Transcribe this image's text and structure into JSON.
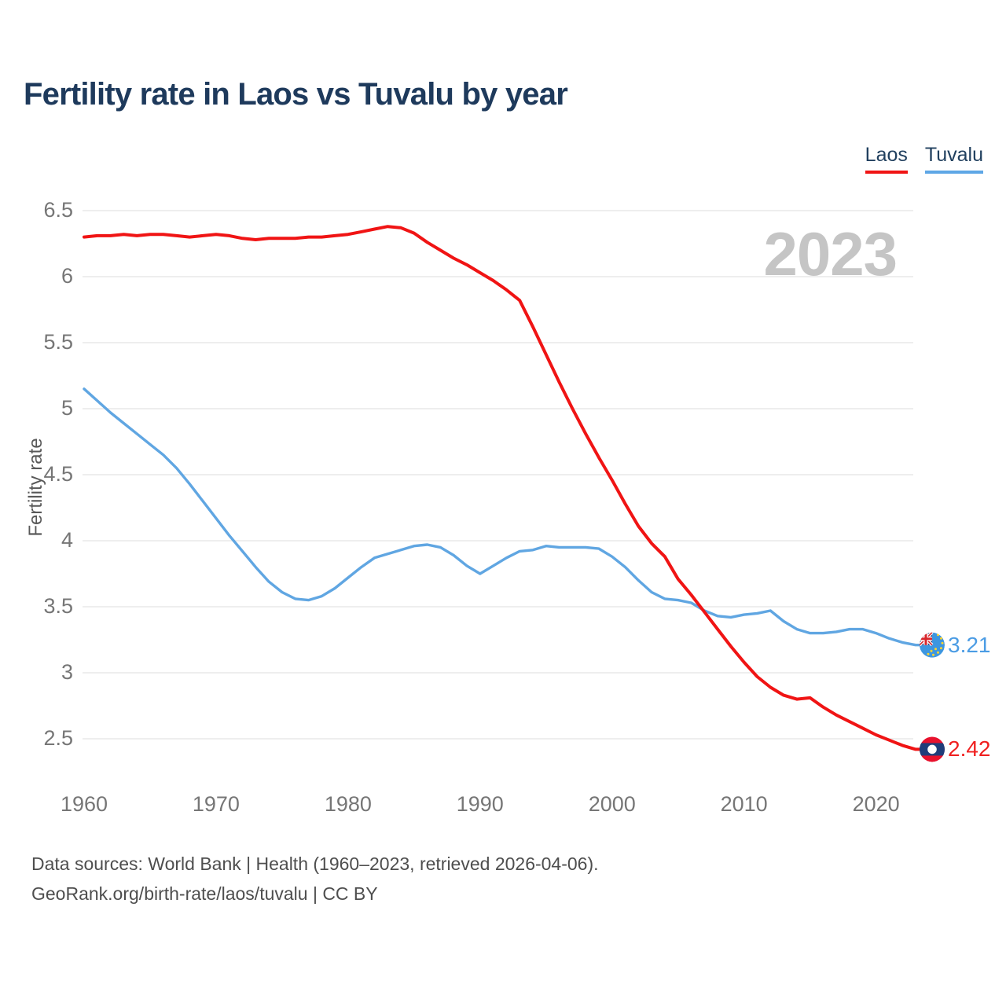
{
  "header": {
    "title": "Fertility rate in Laos vs Tuvalu by year"
  },
  "legend": {
    "items": [
      {
        "label": "Laos",
        "color": "#f01414"
      },
      {
        "label": "Tuvalu",
        "color": "#5ea7e6"
      }
    ]
  },
  "watermark": "2023",
  "colors": {
    "laos_line": "#f01414",
    "tuvalu_line": "#60a6e2",
    "grid": "#e9e9e9",
    "tick_text": "#767676",
    "title_text": "#1e3a5c",
    "watermark_text": "#c5c5c5"
  },
  "chart_data": {
    "type": "line",
    "title": "Fertility rate in Laos vs Tuvalu by year",
    "xlabel": "",
    "ylabel": "Fertility rate",
    "grid": "horizontal",
    "legend_position": "top-right",
    "x_ticks": [
      1960,
      1970,
      1980,
      1990,
      2000,
      2010,
      2020
    ],
    "y_ticks": [
      6.5,
      6,
      5.5,
      5,
      4.5,
      4,
      3.5,
      3,
      2.5
    ],
    "ylim": [
      2.5,
      6.5
    ],
    "xlim": [
      1960,
      2023
    ],
    "x": [
      1960,
      1961,
      1962,
      1963,
      1964,
      1965,
      1966,
      1967,
      1968,
      1969,
      1970,
      1971,
      1972,
      1973,
      1974,
      1975,
      1976,
      1977,
      1978,
      1979,
      1980,
      1981,
      1982,
      1983,
      1984,
      1985,
      1986,
      1987,
      1988,
      1989,
      1990,
      1991,
      1992,
      1993,
      1994,
      1995,
      1996,
      1997,
      1998,
      1999,
      2000,
      2001,
      2002,
      2003,
      2004,
      2005,
      2006,
      2007,
      2008,
      2009,
      2010,
      2011,
      2012,
      2013,
      2014,
      2015,
      2016,
      2017,
      2018,
      2019,
      2020,
      2021,
      2022,
      2023
    ],
    "series": [
      {
        "name": "Laos",
        "color": "#f01414",
        "end_label": "2.42",
        "end_value": 2.42,
        "values": [
          6.3,
          6.31,
          6.31,
          6.32,
          6.31,
          6.32,
          6.32,
          6.31,
          6.3,
          6.31,
          6.32,
          6.31,
          6.29,
          6.28,
          6.29,
          6.29,
          6.29,
          6.3,
          6.3,
          6.31,
          6.32,
          6.34,
          6.36,
          6.38,
          6.37,
          6.33,
          6.26,
          6.2,
          6.14,
          6.09,
          6.03,
          5.97,
          5.9,
          5.82,
          5.62,
          5.41,
          5.2,
          5.0,
          4.81,
          4.63,
          4.46,
          4.28,
          4.11,
          3.98,
          3.88,
          3.71,
          3.59,
          3.46,
          3.33,
          3.2,
          3.08,
          2.97,
          2.89,
          2.83,
          2.8,
          2.81,
          2.74,
          2.68,
          2.63,
          2.58,
          2.53,
          2.49,
          2.45,
          2.42
        ]
      },
      {
        "name": "Tuvalu",
        "color": "#60a6e2",
        "end_label": "3.21",
        "end_value": 3.21,
        "values": [
          5.15,
          5.06,
          4.97,
          4.89,
          4.81,
          4.73,
          4.65,
          4.55,
          4.43,
          4.3,
          4.17,
          4.04,
          3.92,
          3.8,
          3.69,
          3.61,
          3.56,
          3.55,
          3.58,
          3.64,
          3.72,
          3.8,
          3.87,
          3.9,
          3.93,
          3.96,
          3.97,
          3.95,
          3.89,
          3.81,
          3.75,
          3.81,
          3.87,
          3.92,
          3.93,
          3.96,
          3.95,
          3.95,
          3.95,
          3.94,
          3.88,
          3.8,
          3.7,
          3.61,
          3.56,
          3.55,
          3.53,
          3.47,
          3.43,
          3.42,
          3.44,
          3.45,
          3.47,
          3.39,
          3.33,
          3.3,
          3.3,
          3.31,
          3.33,
          3.33,
          3.3,
          3.26,
          3.23,
          3.21
        ]
      }
    ]
  },
  "footer": {
    "line1": "Data sources: World Bank | Health (1960–2023, retrieved 2026-04-06).",
    "line2": "GeoRank.org/birth-rate/laos/tuvalu | CC BY"
  }
}
